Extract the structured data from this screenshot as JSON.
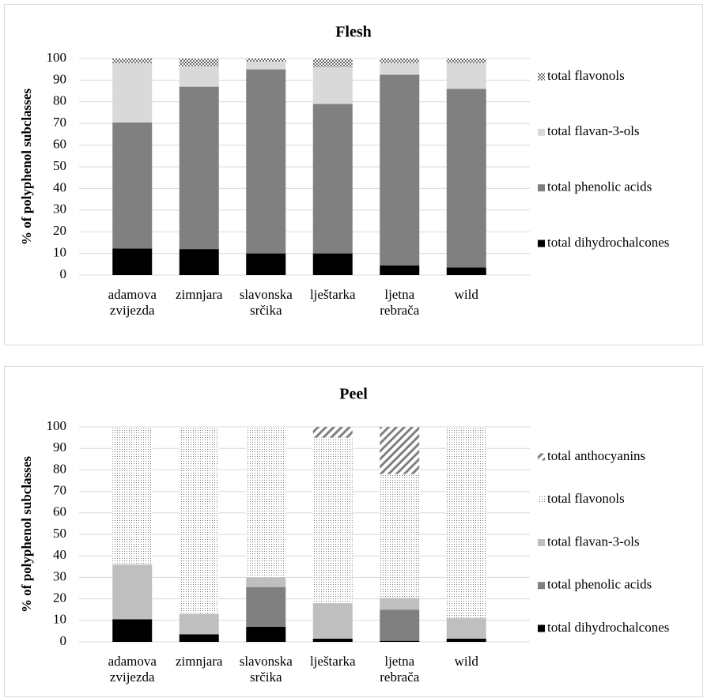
{
  "chart_data": [
    {
      "type": "stacked-bar",
      "title": "Flesh",
      "y_label": "% of polyphenol subclasses",
      "categories": [
        "adamova zvijezda",
        "zimnjara",
        "slavonska srčika",
        "lještarka",
        "ljetna rebrača",
        "wild"
      ],
      "series": [
        {
          "name": "total dihydrochalcones",
          "color": "#000000",
          "values": [
            12.3,
            12,
            10,
            10,
            4.5,
            3.5
          ]
        },
        {
          "name": "total phenolic acids",
          "color": "#808080",
          "values": [
            58.2,
            75,
            85,
            69,
            88,
            82.5
          ]
        },
        {
          "name": "total flavan-3-ols",
          "color": "#d9d9d9",
          "values": [
            27.5,
            9.5,
            3.5,
            17,
            5.5,
            12
          ]
        },
        {
          "name": "total flavonols",
          "color": "#000000",
          "pattern": "dots",
          "values": [
            2,
            3.5,
            1.5,
            4,
            2,
            2
          ]
        }
      ],
      "ylim": [
        0,
        100
      ],
      "yticks": [
        0,
        10,
        20,
        30,
        40,
        50,
        60,
        70,
        80,
        90,
        100
      ],
      "grid": true,
      "legend": "right"
    },
    {
      "type": "stacked-bar",
      "title": "Peel",
      "y_label": "% of polyphenol subclasses",
      "categories": [
        "adamova zvijezda",
        "zimnjara",
        "slavonska srčika",
        "lještarka",
        "ljetna rebrača",
        "wild"
      ],
      "series": [
        {
          "name": "total dihydrochalcones",
          "color": "#000000",
          "values": [
            10.5,
            3.5,
            7,
            1.5,
            0.5,
            1.5
          ]
        },
        {
          "name": "total phenolic acids",
          "color": "#808080",
          "values": [
            0,
            0,
            18.5,
            0,
            14.5,
            0
          ]
        },
        {
          "name": "total flavan-3-ols",
          "color": "#bfbfbf",
          "values": [
            25.5,
            9.5,
            4.5,
            16.5,
            5.5,
            9.5
          ]
        },
        {
          "name": "total flavonols",
          "color": "#555555",
          "pattern": "fine-dots",
          "values": [
            64,
            87,
            70,
            77,
            57.5,
            89
          ]
        },
        {
          "name": "total anthocyanins",
          "color": "#808080",
          "pattern": "stripes",
          "values": [
            0,
            0,
            0,
            5,
            22,
            0
          ]
        }
      ],
      "ylim": [
        0,
        100
      ],
      "yticks": [
        0,
        10,
        20,
        30,
        40,
        50,
        60,
        70,
        80,
        90,
        100
      ],
      "grid": true,
      "legend": "right"
    }
  ]
}
